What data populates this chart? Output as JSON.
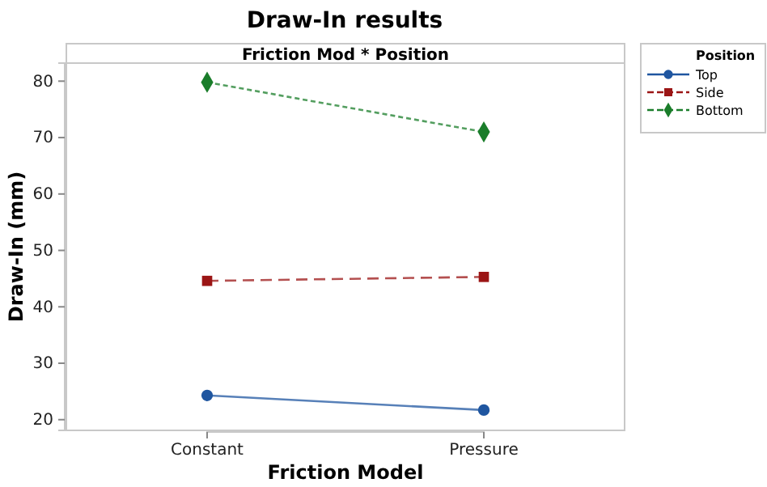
{
  "chart_data": {
    "type": "line",
    "title": "Draw-In results",
    "subtitle": "Friction Mod * Position",
    "xlabel": "Friction Model",
    "ylabel": "Draw-In (mm)",
    "legend_title": "Position",
    "categories": [
      "Constant",
      "Pressure"
    ],
    "series": [
      {
        "name": "Top",
        "color": "#1f56a0",
        "values": [
          24.3,
          21.7
        ],
        "marker": "circle",
        "line_style": "solid"
      },
      {
        "name": "Side",
        "color": "#9b1515",
        "values": [
          44.6,
          45.3
        ],
        "marker": "square",
        "line_style": "dashed"
      },
      {
        "name": "Bottom",
        "color": "#1a7d2a",
        "values": [
          79.8,
          71.0
        ],
        "marker": "diamond",
        "line_style": "dotted"
      }
    ],
    "ylim": [
      18.1,
      83.2
    ],
    "yticks": [
      20,
      30,
      40,
      50,
      60,
      70,
      80
    ],
    "grid": false,
    "legend": "top right"
  }
}
